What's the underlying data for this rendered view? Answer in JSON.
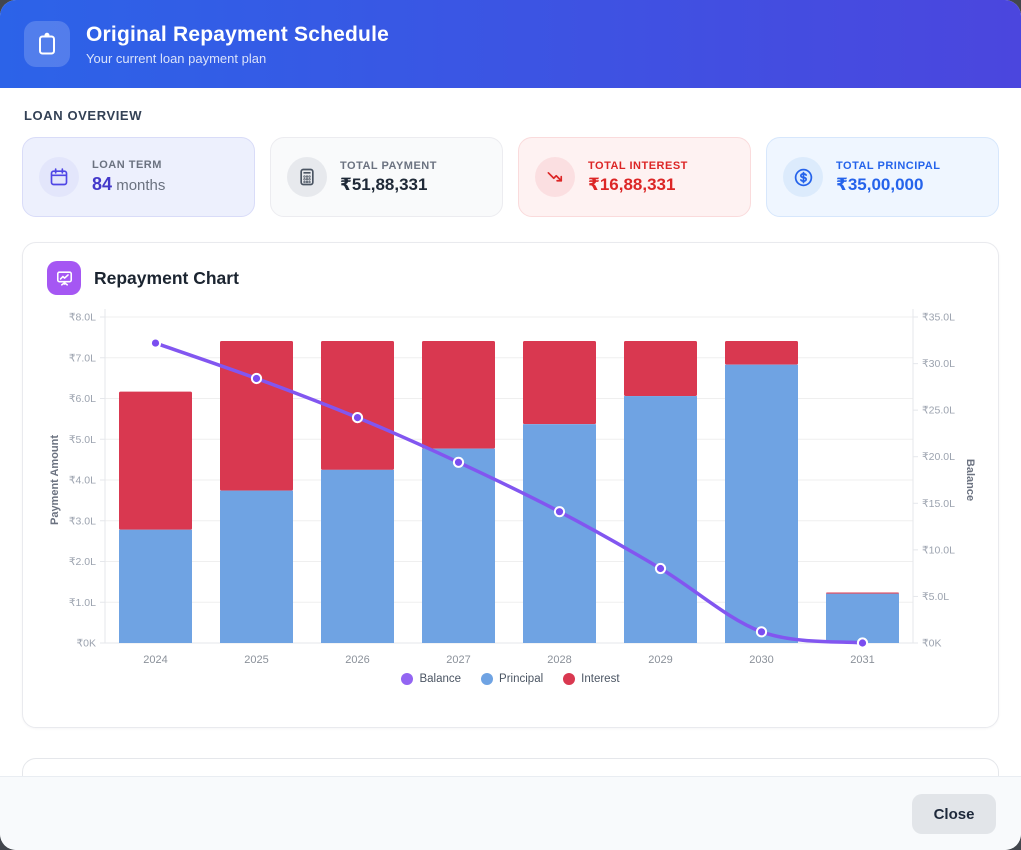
{
  "header": {
    "title": "Original Repayment Schedule",
    "subtitle": "Your current loan payment plan",
    "icon": "clipboard-icon"
  },
  "overview": {
    "heading": "LOAN OVERVIEW",
    "cards": [
      {
        "label": "LOAN TERM",
        "value_strong": "84",
        "value_rest": " months",
        "icon": "calendar-icon",
        "theme": "indigo"
      },
      {
        "label": "TOTAL PAYMENT",
        "value": "₹51,88,331",
        "icon": "calculator-icon",
        "theme": "gray"
      },
      {
        "label": "TOTAL INTEREST",
        "value": "₹16,88,331",
        "icon": "trend-down-icon",
        "theme": "red"
      },
      {
        "label": "TOTAL PRINCIPAL",
        "value": "₹35,00,000",
        "icon": "dollar-circle-icon",
        "theme": "blue"
      }
    ]
  },
  "chart_section": {
    "title": "Repayment Chart",
    "icon": "presentation-chart-icon"
  },
  "chart_data": {
    "type": "bar",
    "subtype": "stacked-bars-with-line",
    "categories": [
      "2024",
      "2025",
      "2026",
      "2027",
      "2028",
      "2029",
      "2030",
      "2031"
    ],
    "series": [
      {
        "name": "Balance",
        "type": "line",
        "axis": "right",
        "color": "#8256f0",
        "point_fill": "#7a4df0",
        "values_lakh": [
          32.2,
          28.4,
          24.2,
          19.4,
          14.1,
          8.0,
          1.2,
          0.0
        ]
      },
      {
        "name": "Principal",
        "type": "bar",
        "axis": "left",
        "color": "#6fa3e3",
        "values_lakh": [
          2.78,
          3.74,
          4.25,
          4.77,
          5.37,
          6.06,
          6.83,
          1.21
        ]
      },
      {
        "name": "Interest",
        "type": "bar",
        "axis": "left",
        "color": "#d93850",
        "values_lakh": [
          3.39,
          3.67,
          3.16,
          2.64,
          2.04,
          1.35,
          0.58,
          0.03
        ]
      }
    ],
    "left_axis": {
      "label": "Payment Amount",
      "min": 0,
      "max": 8,
      "ticks": [
        "₹0K",
        "₹1.0L",
        "₹2.0L",
        "₹3.0L",
        "₹4.0L",
        "₹5.0L",
        "₹6.0L",
        "₹7.0L",
        "₹8.0L"
      ]
    },
    "right_axis": {
      "label": "Balance",
      "min": 0,
      "max": 35,
      "ticks": [
        "₹0K",
        "₹5.0L",
        "₹10.0L",
        "₹15.0L",
        "₹20.0L",
        "₹25.0L",
        "₹30.0L",
        "₹35.0L"
      ]
    },
    "legend": [
      {
        "name": "Balance",
        "color": "#9365f2"
      },
      {
        "name": "Principal",
        "color": "#6fa3e3"
      },
      {
        "name": "Interest",
        "color": "#d93850"
      }
    ],
    "grid": true,
    "legend_position": "bottom"
  },
  "footer": {
    "close_label": "Close"
  },
  "colors": {
    "header_gradient_start": "#2c63e8",
    "header_gradient_end": "#4b46de",
    "accent_indigo": "#4338ca",
    "accent_red": "#dc2626",
    "accent_blue": "#2563eb",
    "chart_icon_bg": "#a557f3"
  }
}
